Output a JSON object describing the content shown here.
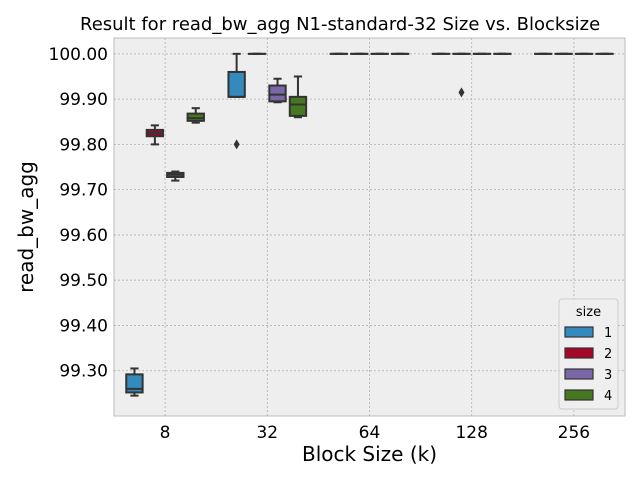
{
  "chart_data": {
    "type": "box",
    "title": "Result for read_bw_agg N1-standard-32 Size vs. Blocksize",
    "xlabel": "Block Size (k)",
    "ylabel": "read_bw_agg",
    "categories": [
      "8",
      "32",
      "64",
      "128",
      "256"
    ],
    "y_ticks": [
      "99.30",
      "99.40",
      "99.50",
      "99.60",
      "99.70",
      "99.80",
      "99.90",
      "100.00"
    ],
    "ylim": [
      99.2,
      100.035
    ],
    "grid": true,
    "legend": {
      "title": "size",
      "placement": "bottom-right",
      "entries": [
        {
          "label": "1",
          "color": "#348abd"
        },
        {
          "label": "2",
          "color": "#a60628"
        },
        {
          "label": "3",
          "color": "#7a68a6"
        },
        {
          "label": "4",
          "color": "#467821"
        }
      ]
    },
    "series": [
      {
        "name": "1",
        "color": "#348abd",
        "boxes": [
          {
            "category": "8",
            "whislo": 99.245,
            "q1": 99.252,
            "med": 99.26,
            "q3": 99.292,
            "whishi": 99.305,
            "fliers": []
          },
          {
            "category": "32",
            "whislo": 99.905,
            "q1": 99.905,
            "med": 99.905,
            "q3": 99.96,
            "whishi": 100.0,
            "fliers": [
              99.8
            ]
          },
          {
            "category": "64",
            "whislo": 100.0,
            "q1": 100.0,
            "med": 100.0,
            "q3": 100.0,
            "whishi": 100.0,
            "fliers": []
          },
          {
            "category": "128",
            "whislo": 100.0,
            "q1": 100.0,
            "med": 100.0,
            "q3": 100.0,
            "whishi": 100.0,
            "fliers": []
          },
          {
            "category": "256",
            "whislo": 100.0,
            "q1": 100.0,
            "med": 100.0,
            "q3": 100.0,
            "whishi": 100.0,
            "fliers": []
          }
        ]
      },
      {
        "name": "2",
        "color": "#a60628",
        "boxes": [
          {
            "category": "8",
            "whislo": 99.8,
            "q1": 99.818,
            "med": 99.825,
            "q3": 99.832,
            "whishi": 99.842,
            "fliers": []
          },
          {
            "category": "32",
            "whislo": 100.0,
            "q1": 100.0,
            "med": 100.0,
            "q3": 100.0,
            "whishi": 100.0,
            "fliers": []
          },
          {
            "category": "64",
            "whislo": 100.0,
            "q1": 100.0,
            "med": 100.0,
            "q3": 100.0,
            "whishi": 100.0,
            "fliers": []
          },
          {
            "category": "128",
            "whislo": 100.0,
            "q1": 100.0,
            "med": 100.0,
            "q3": 100.0,
            "whishi": 100.0,
            "fliers": [
              99.915
            ]
          },
          {
            "category": "256",
            "whislo": 100.0,
            "q1": 100.0,
            "med": 100.0,
            "q3": 100.0,
            "whishi": 100.0,
            "fliers": []
          }
        ]
      },
      {
        "name": "3",
        "color": "#7a68a6",
        "boxes": [
          {
            "category": "8",
            "whislo": 99.72,
            "q1": 99.728,
            "med": 99.733,
            "q3": 99.737,
            "whishi": 99.74,
            "fliers": []
          },
          {
            "category": "32",
            "whislo": 99.893,
            "q1": 99.895,
            "med": 99.91,
            "q3": 99.93,
            "whishi": 99.945,
            "fliers": []
          },
          {
            "category": "64",
            "whislo": 100.0,
            "q1": 100.0,
            "med": 100.0,
            "q3": 100.0,
            "whishi": 100.0,
            "fliers": []
          },
          {
            "category": "128",
            "whislo": 100.0,
            "q1": 100.0,
            "med": 100.0,
            "q3": 100.0,
            "whishi": 100.0,
            "fliers": []
          },
          {
            "category": "256",
            "whislo": 100.0,
            "q1": 100.0,
            "med": 100.0,
            "q3": 100.0,
            "whishi": 100.0,
            "fliers": []
          }
        ]
      },
      {
        "name": "4",
        "color": "#467821",
        "boxes": [
          {
            "category": "8",
            "whislo": 99.848,
            "q1": 99.852,
            "med": 99.858,
            "q3": 99.868,
            "whishi": 99.88,
            "fliers": []
          },
          {
            "category": "32",
            "whislo": 99.86,
            "q1": 99.863,
            "med": 99.888,
            "q3": 99.905,
            "whishi": 99.95,
            "fliers": []
          },
          {
            "category": "64",
            "whislo": 100.0,
            "q1": 100.0,
            "med": 100.0,
            "q3": 100.0,
            "whishi": 100.0,
            "fliers": []
          },
          {
            "category": "128",
            "whislo": 100.0,
            "q1": 100.0,
            "med": 100.0,
            "q3": 100.0,
            "whishi": 100.0,
            "fliers": []
          },
          {
            "category": "256",
            "whislo": 100.0,
            "q1": 100.0,
            "med": 100.0,
            "q3": 100.0,
            "whishi": 100.0,
            "fliers": []
          }
        ]
      }
    ]
  }
}
